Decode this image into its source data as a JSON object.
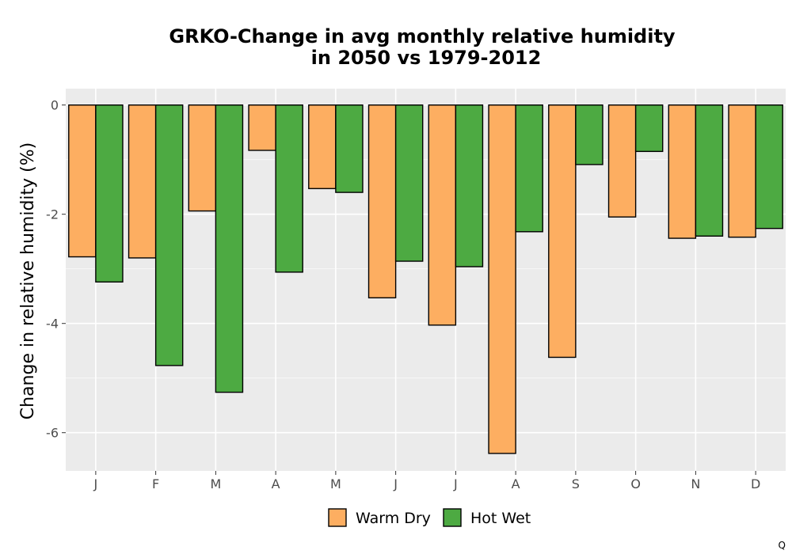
{
  "chart_data": {
    "type": "bar",
    "title_lines": [
      "GRKO-Change in avg monthly relative humidity",
      "in 2050 vs 1979-2012"
    ],
    "xlabel": "",
    "ylabel": "Change in relative humidity (%)",
    "ylim": [
      -6.7,
      0.3
    ],
    "yticks": [
      0,
      -2,
      -4,
      -6
    ],
    "ytick_labels": [
      "0",
      "-2",
      "-4",
      "-6"
    ],
    "categories": [
      "J",
      "F",
      "M",
      "A",
      "M",
      "J",
      "J",
      "A",
      "S",
      "O",
      "N",
      "D"
    ],
    "series": [
      {
        "name": "Warm Dry",
        "color": "#fdae61",
        "values": [
          -2.78,
          -2.8,
          -1.94,
          -0.83,
          -1.53,
          -3.53,
          -4.03,
          -6.38,
          -4.62,
          -2.05,
          -2.44,
          -2.42
        ]
      },
      {
        "name": "Hot Wet",
        "color": "#4daa42",
        "values": [
          -3.24,
          -4.77,
          -5.26,
          -3.06,
          -1.6,
          -2.86,
          -2.96,
          -2.32,
          -1.09,
          -0.85,
          -2.4,
          -2.26
        ]
      }
    ],
    "grid": true,
    "legend_position": "bottom"
  },
  "colors": {
    "panel_background": "#ebebeb",
    "grid_major": "#ffffff",
    "bar_outline": "#000000"
  },
  "corner_mark": "Q"
}
